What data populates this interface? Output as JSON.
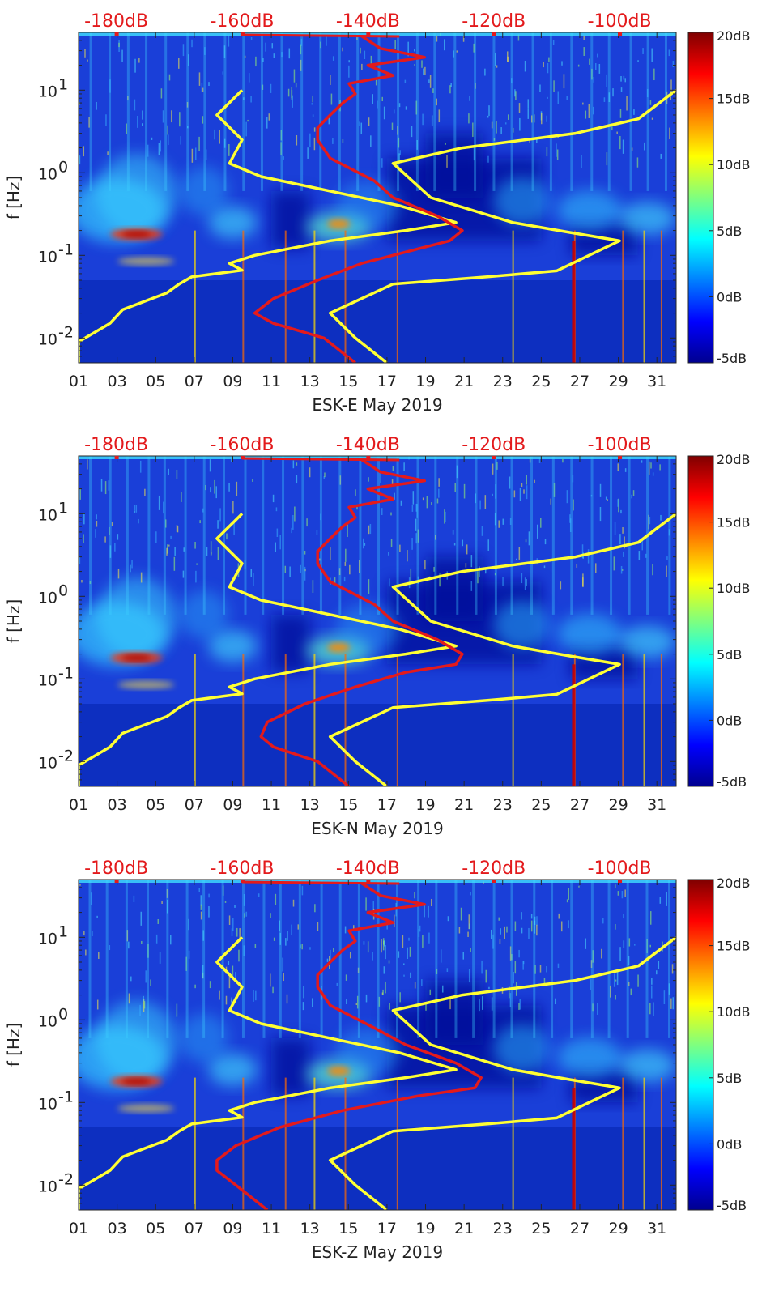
{
  "chart_data": [
    {
      "type": "heatmap",
      "title": "ESK-E May 2019",
      "xlabel": "ESK-E May 2019",
      "ylabel": "f [Hz]",
      "x_tick_labels": [
        "01",
        "03",
        "05",
        "07",
        "09",
        "11",
        "13",
        "15",
        "17",
        "19",
        "21",
        "23",
        "25",
        "27",
        "29",
        "31"
      ],
      "x_tick_days": [
        1,
        3,
        5,
        7,
        9,
        11,
        13,
        15,
        17,
        19,
        21,
        23,
        25,
        27,
        29,
        31
      ],
      "xlim_days": [
        1,
        32
      ],
      "ylim_hz": [
        0.005,
        50
      ],
      "y_tick_labels": [
        "10^-2",
        "10^-1",
        "10^0",
        "10^1"
      ],
      "y_tick_values": [
        0.01,
        0.1,
        1,
        10
      ],
      "top_axis_labels": [
        "-180dB",
        "-160dB",
        "-140dB",
        "-120dB",
        "-100dB"
      ],
      "top_axis_values_db": [
        -180,
        -160,
        -140,
        -120,
        -100
      ],
      "colorbar": {
        "labels": [
          "20dB",
          "15dB",
          "10dB",
          "5dB",
          "0dB",
          "-5dB"
        ],
        "values": [
          20,
          15,
          10,
          5,
          0,
          -5
        ],
        "range": [
          -5,
          20
        ]
      },
      "series": [
        {
          "name": "yellow-left",
          "color": "#ffff33",
          "db": [
            -186,
            -186,
            -181,
            -179,
            -172,
            -170,
            -168,
            -160,
            -162,
            -158,
            -146,
            -134,
            -126,
            -135,
            -146,
            -157,
            -162,
            -160,
            -164,
            -160
          ],
          "freq": [
            0.005,
            0.009,
            0.015,
            0.022,
            0.035,
            0.045,
            0.055,
            0.066,
            0.08,
            0.1,
            0.15,
            0.2,
            0.25,
            0.4,
            0.6,
            0.9,
            1.3,
            2.5,
            5,
            10
          ]
        },
        {
          "name": "yellow-right",
          "color": "#ffff33",
          "db": [
            -137,
            -142,
            -146,
            -136,
            -121,
            -110,
            -100,
            -108,
            -117,
            -130,
            -136,
            -125,
            -107,
            -97,
            -91
          ],
          "freq": [
            0.005,
            0.01,
            0.02,
            0.045,
            0.055,
            0.065,
            0.15,
            0.19,
            0.25,
            0.5,
            1.3,
            2.0,
            3.0,
            4.5,
            10
          ]
        },
        {
          "name": "red-noise-model",
          "color": "#e31a1c",
          "db": [
            -142,
            -147,
            -155,
            -158,
            -155,
            -148,
            -141,
            -132,
            -127,
            -125,
            -129,
            -136,
            -139,
            -146,
            -148,
            -148,
            -146,
            -144,
            -142,
            -143,
            -136,
            -140,
            -131,
            -138,
            -141
          ],
          "freq": [
            0.005,
            0.01,
            0.015,
            0.02,
            0.03,
            0.05,
            0.08,
            0.12,
            0.15,
            0.2,
            0.3,
            0.5,
            0.8,
            1.5,
            2.5,
            3.5,
            5,
            7,
            9,
            12,
            15,
            20,
            25,
            32,
            45
          ]
        }
      ]
    },
    {
      "type": "heatmap",
      "title": "ESK-N May 2019",
      "xlabel": "ESK-N May 2019",
      "ylabel": "f [Hz]",
      "x_tick_labels": [
        "01",
        "03",
        "05",
        "07",
        "09",
        "11",
        "13",
        "15",
        "17",
        "19",
        "21",
        "23",
        "25",
        "27",
        "29",
        "31"
      ],
      "x_tick_days": [
        1,
        3,
        5,
        7,
        9,
        11,
        13,
        15,
        17,
        19,
        21,
        23,
        25,
        27,
        29,
        31
      ],
      "xlim_days": [
        1,
        32
      ],
      "ylim_hz": [
        0.005,
        50
      ],
      "y_tick_labels": [
        "10^-2",
        "10^-1",
        "10^0",
        "10^1"
      ],
      "y_tick_values": [
        0.01,
        0.1,
        1,
        10
      ],
      "top_axis_labels": [
        "-180dB",
        "-160dB",
        "-140dB",
        "-120dB",
        "-100dB"
      ],
      "top_axis_values_db": [
        -180,
        -160,
        -140,
        -120,
        -100
      ],
      "colorbar": {
        "labels": [
          "20dB",
          "15dB",
          "10dB",
          "5dB",
          "0dB",
          "-5dB"
        ],
        "values": [
          20,
          15,
          10,
          5,
          0,
          -5
        ],
        "range": [
          -5,
          20
        ]
      },
      "series": [
        {
          "name": "yellow-left",
          "color": "#ffff33",
          "db": [
            -186,
            -186,
            -181,
            -179,
            -172,
            -170,
            -168,
            -160,
            -162,
            -158,
            -146,
            -134,
            -126,
            -135,
            -146,
            -157,
            -162,
            -160,
            -164,
            -160
          ],
          "freq": [
            0.005,
            0.009,
            0.015,
            0.022,
            0.035,
            0.045,
            0.055,
            0.066,
            0.08,
            0.1,
            0.15,
            0.2,
            0.25,
            0.4,
            0.6,
            0.9,
            1.3,
            2.5,
            5,
            10
          ]
        },
        {
          "name": "yellow-right",
          "color": "#ffff33",
          "db": [
            -137,
            -142,
            -146,
            -136,
            -121,
            -110,
            -100,
            -108,
            -117,
            -130,
            -136,
            -125,
            -107,
            -97,
            -91
          ],
          "freq": [
            0.005,
            0.01,
            0.02,
            0.045,
            0.055,
            0.065,
            0.15,
            0.19,
            0.25,
            0.5,
            1.3,
            2.0,
            3.0,
            4.5,
            10
          ]
        },
        {
          "name": "red-noise-model",
          "color": "#e31a1c",
          "db": [
            -143,
            -148,
            -155,
            -157,
            -156,
            -150,
            -142,
            -134,
            -126,
            -125,
            -129,
            -136,
            -139,
            -146,
            -148,
            -148,
            -146,
            -144,
            -142,
            -143,
            -136,
            -140,
            -131,
            -138,
            -141
          ],
          "freq": [
            0.005,
            0.01,
            0.015,
            0.02,
            0.03,
            0.05,
            0.08,
            0.12,
            0.15,
            0.2,
            0.3,
            0.5,
            0.8,
            1.5,
            2.5,
            3.5,
            5,
            7,
            9,
            12,
            15,
            20,
            25,
            32,
            45
          ]
        }
      ]
    },
    {
      "type": "heatmap",
      "title": "ESK-Z May 2019",
      "xlabel": "ESK-Z May 2019",
      "ylabel": "f [Hz]",
      "x_tick_labels": [
        "01",
        "03",
        "05",
        "07",
        "09",
        "11",
        "13",
        "15",
        "17",
        "19",
        "21",
        "23",
        "25",
        "27",
        "29",
        "31"
      ],
      "x_tick_days": [
        1,
        3,
        5,
        7,
        9,
        11,
        13,
        15,
        17,
        19,
        21,
        23,
        25,
        27,
        29,
        31
      ],
      "xlim_days": [
        1,
        32
      ],
      "ylim_hz": [
        0.005,
        50
      ],
      "y_tick_labels": [
        "10^-2",
        "10^-1",
        "10^0",
        "10^1"
      ],
      "y_tick_values": [
        0.01,
        0.1,
        1,
        10
      ],
      "top_axis_labels": [
        "-180dB",
        "-160dB",
        "-140dB",
        "-120dB",
        "-100dB"
      ],
      "top_axis_values_db": [
        -180,
        -160,
        -140,
        -120,
        -100
      ],
      "colorbar": {
        "labels": [
          "20dB",
          "15dB",
          "10dB",
          "5dB",
          "0dB",
          "-5dB"
        ],
        "values": [
          20,
          15,
          10,
          5,
          0,
          -5
        ],
        "range": [
          -5,
          20
        ]
      },
      "series": [
        {
          "name": "yellow-left",
          "color": "#ffff33",
          "db": [
            -186,
            -186,
            -181,
            -179,
            -172,
            -170,
            -168,
            -160,
            -162,
            -158,
            -146,
            -134,
            -126,
            -135,
            -146,
            -157,
            -162,
            -160,
            -164,
            -160
          ],
          "freq": [
            0.005,
            0.009,
            0.015,
            0.022,
            0.035,
            0.045,
            0.055,
            0.066,
            0.08,
            0.1,
            0.15,
            0.2,
            0.25,
            0.4,
            0.6,
            0.9,
            1.3,
            2.5,
            5,
            10
          ]
        },
        {
          "name": "yellow-right",
          "color": "#ffff33",
          "db": [
            -137,
            -142,
            -146,
            -136,
            -121,
            -110,
            -100,
            -108,
            -117,
            -130,
            -136,
            -125,
            -107,
            -97,
            -91
          ],
          "freq": [
            0.005,
            0.01,
            0.02,
            0.045,
            0.055,
            0.065,
            0.15,
            0.19,
            0.25,
            0.5,
            1.3,
            2.0,
            3.0,
            4.5,
            10
          ]
        },
        {
          "name": "red-noise-model",
          "color": "#e31a1c",
          "db": [
            -156,
            -161,
            -164,
            -164,
            -161,
            -154,
            -144,
            -132,
            -123,
            -122,
            -126,
            -134,
            -139,
            -146,
            -148,
            -148,
            -146,
            -144,
            -142,
            -143,
            -136,
            -140,
            -131,
            -138,
            -141
          ],
          "freq": [
            0.005,
            0.01,
            0.015,
            0.02,
            0.03,
            0.05,
            0.08,
            0.12,
            0.15,
            0.2,
            0.3,
            0.5,
            0.8,
            1.5,
            2.5,
            3.5,
            5,
            7,
            9,
            12,
            15,
            20,
            25,
            32,
            45
          ]
        }
      ]
    }
  ]
}
